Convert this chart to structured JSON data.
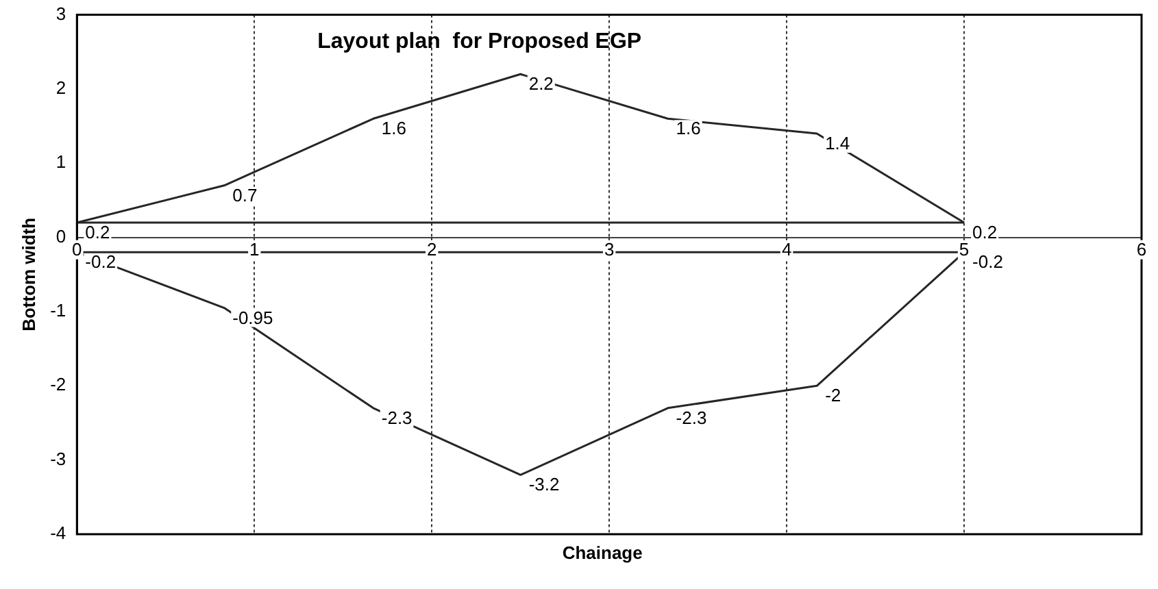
{
  "chart_data": {
    "type": "line",
    "title": "Layout plan  for Proposed EGP",
    "xlabel": "Chainage",
    "ylabel": "Bottom width",
    "xlim": [
      0,
      6
    ],
    "xticks": [
      0,
      1,
      2,
      3,
      4,
      5,
      6
    ],
    "ylim": [
      -4,
      3
    ],
    "yticks": [
      -4,
      -3,
      -2,
      -1,
      0,
      1,
      2,
      3
    ],
    "grid": "x",
    "legend": false,
    "marker": "none",
    "line_style": "solid",
    "series": [
      {
        "color": "#262626",
        "x": [
          0,
          0.83,
          1.67,
          2.5,
          3.33,
          4.17,
          5
        ],
        "values": [
          0.2,
          0.7,
          1.6,
          2.2,
          1.6,
          1.4,
          0.2
        ],
        "value_labels": [
          "0.2",
          "0.7",
          "1.6",
          "2.2",
          "1.6",
          "1.4",
          "0.2"
        ]
      },
      {
        "color": "#262626",
        "x": [
          0,
          5
        ],
        "values": [
          0.2,
          0.2
        ]
      },
      {
        "color": "#262626",
        "x": [
          0,
          5
        ],
        "values": [
          -0.2,
          -0.2
        ]
      },
      {
        "color": "#262626",
        "x": [
          0,
          0.83,
          1.67,
          2.5,
          3.33,
          4.17,
          5
        ],
        "values": [
          -0.2,
          -0.95,
          -2.3,
          -3.2,
          -2.3,
          -2,
          -0.2
        ],
        "value_labels": [
          "-0.2",
          "-0.95",
          "-2.3",
          "-3.2",
          "-2.3",
          "-2",
          "-0.2"
        ]
      }
    ]
  }
}
